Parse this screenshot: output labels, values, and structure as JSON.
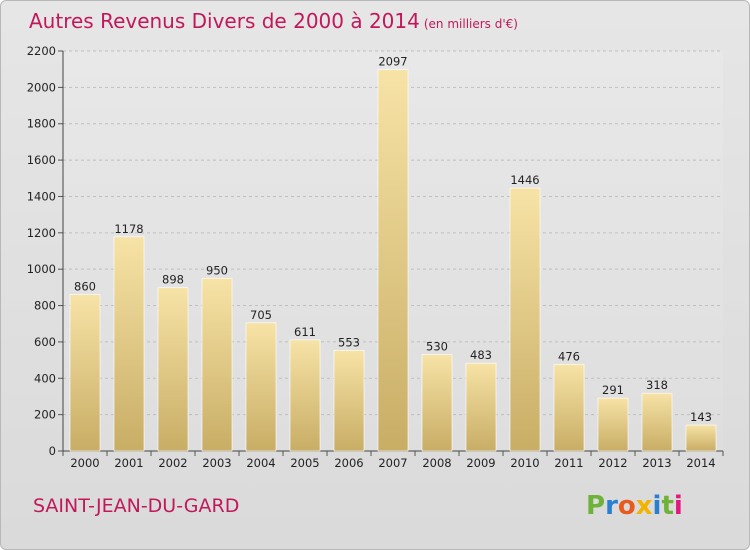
{
  "title": "Autres Revenus Divers de 2000 à 2014",
  "subtitle": "(en milliers d'€)",
  "city": "SAINT-JEAN-DU-GARD",
  "logo": {
    "letters": [
      "P",
      "r",
      "o",
      "x",
      "i",
      "t",
      "i"
    ],
    "colors": [
      "#6fb23a",
      "#2b7fd0",
      "#e85a1d",
      "#f2b400",
      "#2b7fd0",
      "#6fb23a",
      "#e2197d"
    ]
  },
  "colors": {
    "title": "#c2185b",
    "bar_light": "#f5dd9a",
    "bar_dark": "#c9ae66"
  },
  "chart_data": {
    "type": "bar",
    "title": "Autres Revenus Divers de 2000 à 2014",
    "subtitle": "(en milliers d'€)",
    "categories": [
      "2000",
      "2001",
      "2002",
      "2003",
      "2004",
      "2005",
      "2006",
      "2007",
      "2008",
      "2009",
      "2010",
      "2011",
      "2012",
      "2013",
      "2014"
    ],
    "values": [
      860,
      1178,
      898,
      950,
      705,
      611,
      553,
      2097,
      530,
      483,
      1446,
      476,
      291,
      318,
      143
    ],
    "ylim": [
      0,
      2200
    ],
    "yticks": [
      0,
      200,
      400,
      600,
      800,
      1000,
      1200,
      1400,
      1600,
      1800,
      2000,
      2200
    ],
    "grid": true,
    "xlabel": "",
    "ylabel": ""
  }
}
